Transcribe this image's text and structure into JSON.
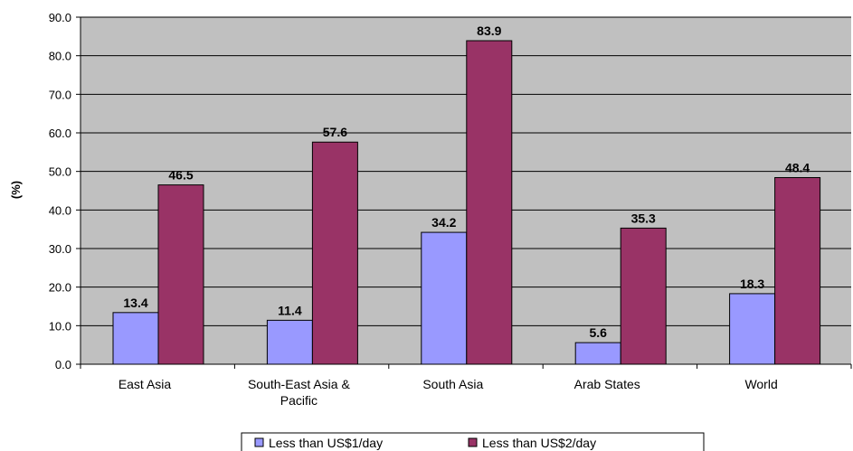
{
  "chart_data": {
    "type": "bar",
    "title": "",
    "xlabel": "",
    "ylabel": "(%)",
    "ylim": [
      0,
      90
    ],
    "ytick_step": 10,
    "ytick_format": "0.0",
    "grid": true,
    "legend_position": "bottom",
    "categories": [
      [
        "East Asia"
      ],
      [
        "South-East Asia &",
        "Pacific"
      ],
      [
        "South Asia"
      ],
      [
        "Arab States"
      ],
      [
        "World"
      ]
    ],
    "series": [
      {
        "name": "Less than US$1/day",
        "color": "#9999FF",
        "values": [
          13.4,
          11.4,
          34.2,
          5.6,
          18.3
        ]
      },
      {
        "name": "Less than US$2/day",
        "color": "#993366",
        "values": [
          46.5,
          57.6,
          83.9,
          35.3,
          48.4
        ]
      }
    ],
    "colors": {
      "plot_background": "#C0C0C0",
      "gridline": "#000000"
    }
  }
}
